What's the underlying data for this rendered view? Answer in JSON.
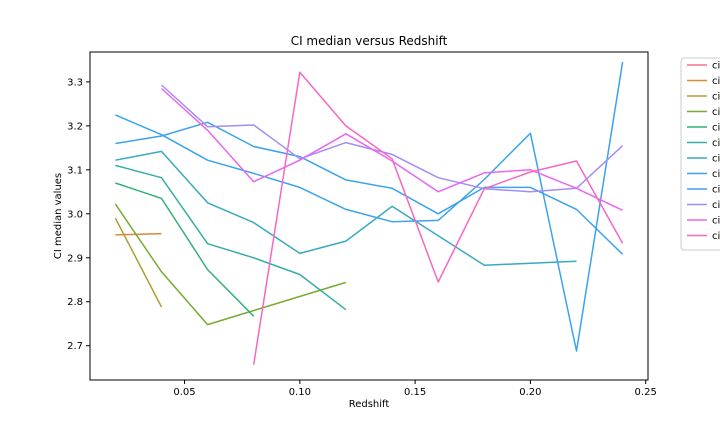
{
  "chart_data": {
    "type": "line",
    "title": "CI median versus Redshift",
    "xlabel": "Redshift",
    "ylabel": "CI median values",
    "xlim": [
      0.009,
      0.251
    ],
    "ylim": [
      2.622,
      3.368
    ],
    "xticks": [
      0.05,
      0.1,
      0.15,
      0.2,
      0.25
    ],
    "xtick_labels": [
      "0.05",
      "0.10",
      "0.15",
      "0.20",
      "0.25"
    ],
    "yticks": [
      2.7,
      2.8,
      2.9,
      3.0,
      3.1,
      3.2,
      3.3
    ],
    "ytick_labels": [
      "2.7",
      "2.8",
      "2.9",
      "3.0",
      "3.1",
      "3.2",
      "3.3"
    ],
    "grid": false,
    "legend_position": "right (outside, clipped)",
    "series": [
      {
        "name": "ci",
        "color": "#f77189",
        "x": [],
        "y": []
      },
      {
        "name": "ci",
        "color": "#dc8932",
        "x": [
          0.02,
          0.04
        ],
        "y": [
          2.952,
          2.955
        ]
      },
      {
        "name": "ci",
        "color": "#ae9d31",
        "x": [
          0.02,
          0.04
        ],
        "y": [
          2.99,
          2.788
        ]
      },
      {
        "name": "ci",
        "color": "#77ab31",
        "x": [
          0.02,
          0.04,
          0.06,
          0.08,
          0.12
        ],
        "y": [
          3.022,
          2.868,
          2.748,
          2.78,
          2.844
        ]
      },
      {
        "name": "ci",
        "color": "#33b07a",
        "x": [
          0.02,
          0.04,
          0.06,
          0.08
        ],
        "y": [
          3.07,
          3.035,
          2.873,
          2.767
        ]
      },
      {
        "name": "ci",
        "color": "#36ada4",
        "x": [
          0.02,
          0.04,
          0.06,
          0.08,
          0.1,
          0.12
        ],
        "y": [
          3.11,
          3.082,
          2.932,
          2.9,
          2.862,
          2.782
        ]
      },
      {
        "name": "ci",
        "color": "#38aabf",
        "x": [
          0.02,
          0.04,
          0.06,
          0.08,
          0.1,
          0.12,
          0.14,
          0.16,
          0.18,
          0.22
        ],
        "y": [
          3.122,
          3.142,
          3.025,
          2.98,
          2.91,
          2.938,
          3.017,
          2.95,
          2.883,
          2.892
        ]
      },
      {
        "name": "ci",
        "color": "#3ba3ec",
        "x": [
          0.02,
          0.04,
          0.06,
          0.08,
          0.1,
          0.12,
          0.14,
          0.16,
          0.18,
          0.2,
          0.22,
          0.24
        ],
        "y": [
          3.225,
          3.18,
          3.122,
          3.092,
          3.06,
          3.01,
          2.982,
          2.985,
          3.078,
          3.183,
          2.688,
          3.345
        ]
      },
      {
        "name": "ci",
        "color": "#3ba3ec",
        "x": [
          0.02,
          0.04,
          0.06,
          0.08,
          0.1,
          0.12,
          0.14,
          0.16,
          0.18,
          0.2,
          0.22,
          0.24
        ],
        "y": [
          3.16,
          3.177,
          3.208,
          3.153,
          3.13,
          3.077,
          3.058,
          3.0,
          3.06,
          3.06,
          3.01,
          2.908
        ]
      },
      {
        "name": "ci",
        "color": "#a48cf4",
        "x": [
          0.04,
          0.06,
          0.08,
          0.1,
          0.12,
          0.14,
          0.16,
          0.18,
          0.2,
          0.22,
          0.24
        ],
        "y": [
          3.293,
          3.198,
          3.202,
          3.125,
          3.162,
          3.135,
          3.082,
          3.057,
          3.05,
          3.058,
          3.155
        ]
      },
      {
        "name": "ci",
        "color": "#e866f4",
        "x": [
          0.04,
          0.06,
          0.08,
          0.1,
          0.12,
          0.14,
          0.16,
          0.18,
          0.2,
          0.22,
          0.24
        ],
        "y": [
          3.285,
          3.19,
          3.073,
          3.122,
          3.182,
          3.12,
          3.05,
          3.093,
          3.1,
          3.058,
          3.008
        ]
      },
      {
        "name": "ci",
        "color": "#f668c2",
        "x": [
          0.08,
          0.1,
          0.12,
          0.14,
          0.16,
          0.18,
          0.2,
          0.22,
          0.24
        ],
        "y": [
          2.657,
          3.322,
          3.2,
          3.125,
          2.845,
          3.057,
          3.095,
          3.12,
          2.933
        ]
      }
    ]
  }
}
